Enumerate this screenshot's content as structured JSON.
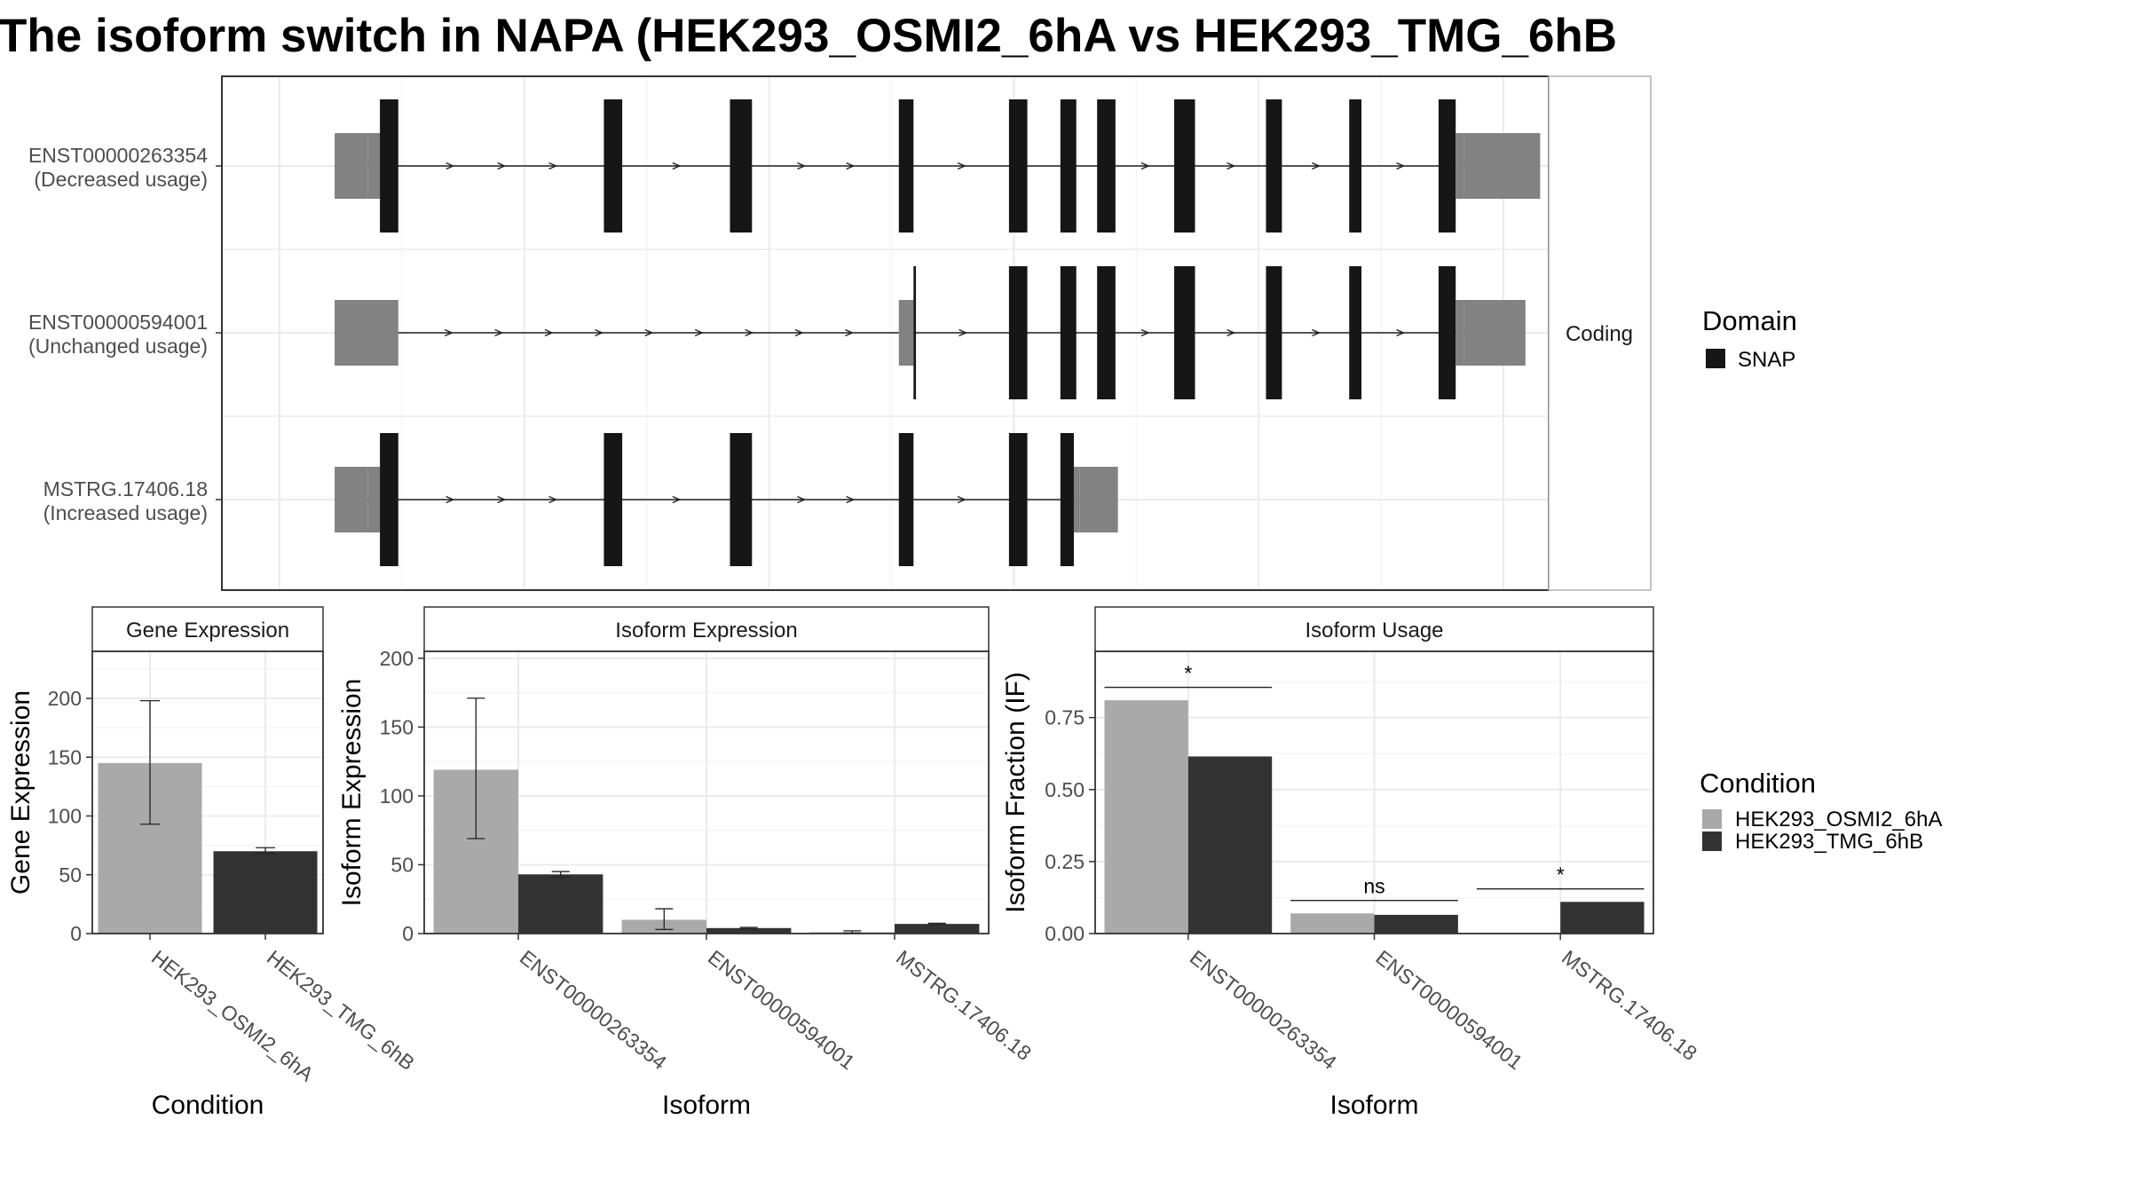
{
  "title": "The isoform switch in NAPA (HEK293_OSMI2_6hA vs HEK293_TMG_6hB",
  "transcript_plot": {
    "strip_label": "Coding",
    "legend": {
      "title": "Domain",
      "entries": [
        {
          "label": "SNAP",
          "color": "#161616"
        }
      ]
    },
    "isoforms": [
      {
        "id": "ENST00000263354",
        "usage": "(Decreased usage)",
        "segments": [
          [
            0.045,
            0.072,
            "utr"
          ],
          [
            0.072,
            0.082,
            "utr"
          ],
          [
            0.082,
            0.097,
            "snap"
          ],
          [
            0.265,
            0.28,
            "snap"
          ],
          [
            0.368,
            0.386,
            "snap"
          ],
          [
            0.506,
            0.518,
            "snap"
          ],
          [
            0.596,
            0.611,
            "snap"
          ],
          [
            0.638,
            0.651,
            "snap"
          ],
          [
            0.668,
            0.683,
            "snap"
          ],
          [
            0.731,
            0.748,
            "snap"
          ],
          [
            0.806,
            0.819,
            "snap"
          ],
          [
            0.874,
            0.884,
            "snap"
          ],
          [
            0.947,
            0.961,
            "snap"
          ],
          [
            0.961,
            0.968,
            "utr"
          ],
          [
            0.968,
            1.03,
            "utr"
          ]
        ]
      },
      {
        "id": "ENST00000594001",
        "usage": "(Unchanged usage)",
        "segments": [
          [
            0.045,
            0.097,
            "utr"
          ],
          [
            0.506,
            0.518,
            "utr"
          ],
          [
            0.518,
            0.52,
            "snap"
          ],
          [
            0.596,
            0.611,
            "snap"
          ],
          [
            0.638,
            0.651,
            "snap"
          ],
          [
            0.668,
            0.683,
            "snap"
          ],
          [
            0.731,
            0.748,
            "snap"
          ],
          [
            0.806,
            0.819,
            "snap"
          ],
          [
            0.874,
            0.884,
            "snap"
          ],
          [
            0.947,
            0.961,
            "snap"
          ],
          [
            0.961,
            0.968,
            "utr"
          ],
          [
            0.968,
            1.018,
            "utr"
          ]
        ]
      },
      {
        "id": "MSTRG.17406.18",
        "usage": "(Increased usage)",
        "segments": [
          [
            0.045,
            0.072,
            "utr"
          ],
          [
            0.072,
            0.082,
            "utr"
          ],
          [
            0.082,
            0.097,
            "snap"
          ],
          [
            0.265,
            0.28,
            "snap"
          ],
          [
            0.368,
            0.386,
            "snap"
          ],
          [
            0.506,
            0.518,
            "snap"
          ],
          [
            0.596,
            0.611,
            "snap"
          ],
          [
            0.638,
            0.649,
            "snap"
          ],
          [
            0.649,
            0.654,
            "utr"
          ],
          [
            0.654,
            0.685,
            "utr"
          ]
        ]
      }
    ]
  },
  "legend_condition": {
    "title": "Condition",
    "entries": [
      {
        "label": "HEK293_OSMI2_6hA",
        "color": "#a9a9a9"
      },
      {
        "label": "HEK293_TMG_6hB",
        "color": "#333333"
      }
    ]
  },
  "chart_data": [
    {
      "type": "bar",
      "panel": "Gene Expression",
      "xlabel": "Condition",
      "ylabel": "Gene Expression",
      "ylim": [
        0,
        240
      ],
      "yticks": [
        0,
        50,
        100,
        150,
        200
      ],
      "categories": [
        "HEK293_OSMI2_6hA",
        "HEK293_TMG_6hB"
      ],
      "values": [
        145,
        70
      ],
      "error_low": [
        93,
        68
      ],
      "error_high": [
        198,
        73
      ],
      "colors": [
        "#a9a9a9",
        "#333333"
      ]
    },
    {
      "type": "bar",
      "panel": "Isoform Expression",
      "xlabel": "Isoform",
      "ylabel": "Isoform Expression",
      "ylim": [
        0,
        205
      ],
      "yticks": [
        0,
        50,
        100,
        150,
        200
      ],
      "categories": [
        "ENST00000263354",
        "ENST00000594001",
        "MSTRG.17406.18"
      ],
      "series": [
        {
          "name": "HEK293_OSMI2_6hA",
          "values": [
            119,
            10,
            1
          ],
          "error_low": [
            69,
            3,
            0.5
          ],
          "error_high": [
            171,
            18,
            2
          ],
          "color": "#a9a9a9"
        },
        {
          "name": "HEK293_TMG_6hB",
          "values": [
            43,
            4,
            7
          ],
          "error_low": [
            41,
            3.5,
            6.5
          ],
          "error_high": [
            45,
            4.5,
            7.5
          ],
          "color": "#333333"
        }
      ]
    },
    {
      "type": "bar",
      "panel": "Isoform Usage",
      "xlabel": "Isoform",
      "ylabel": "Isoform Fraction (IF)",
      "ylim": [
        0,
        0.98
      ],
      "yticks": [
        0.0,
        0.25,
        0.5,
        0.75
      ],
      "ytick_labels": [
        "0.00",
        "0.25",
        "0.50",
        "0.75"
      ],
      "categories": [
        "ENST00000263354",
        "ENST00000594001",
        "MSTRG.17406.18"
      ],
      "series": [
        {
          "name": "HEK293_OSMI2_6hA",
          "values": [
            0.81,
            0.07,
            0.002
          ],
          "color": "#a9a9a9"
        },
        {
          "name": "HEK293_TMG_6hB",
          "values": [
            0.615,
            0.065,
            0.11
          ],
          "color": "#333333"
        }
      ],
      "significance": [
        {
          "category": 0,
          "label": "*",
          "y": 0.855
        },
        {
          "category": 1,
          "label": "ns",
          "y": 0.115
        },
        {
          "category": 2,
          "label": "*",
          "y": 0.155
        }
      ]
    }
  ]
}
